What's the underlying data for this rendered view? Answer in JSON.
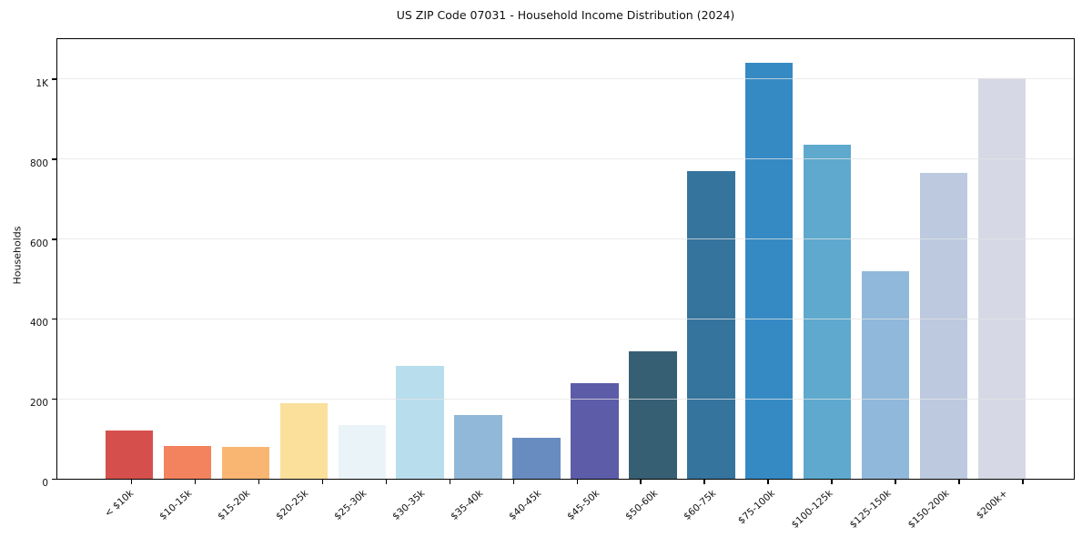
{
  "chart_data": {
    "type": "bar",
    "title": "US ZIP Code 07031 - Household Income Distribution (2024)",
    "xlabel": "",
    "ylabel": "Households",
    "ylim": [
      0,
      1100
    ],
    "grid": "horizontal",
    "legend": "none",
    "background_color": "#ffffff",
    "spine_color": "#000000",
    "grid_color": "#e4e4e6",
    "categories": [
      "< $10k",
      "$10-15k",
      "$15-20k",
      "$20-25k",
      "$25-30k",
      "$30-35k",
      "$35-40k",
      "$40-45k",
      "$45-50k",
      "$50-60k",
      "$60-75k",
      "$75-100k",
      "$100-125k",
      "$125-150k",
      "$150-200k",
      "$200k+"
    ],
    "values": [
      120,
      82,
      79,
      188,
      135,
      283,
      160,
      103,
      239,
      320,
      770,
      1040,
      835,
      520,
      766,
      1003
    ],
    "bar_colors": [
      "#d5504c",
      "#f3825f",
      "#f9b673",
      "#fae09b",
      "#eaf3f8",
      "#b8dded",
      "#91b8d8",
      "#688cc0",
      "#5c5ca8",
      "#365f73",
      "#35749d",
      "#358ac4",
      "#5ea9cd",
      "#90b8da",
      "#bcc9df",
      "#d6d8e5"
    ],
    "yticks": [
      {
        "value": 0,
        "label": "0"
      },
      {
        "value": 200,
        "label": "200"
      },
      {
        "value": 400,
        "label": "400"
      },
      {
        "value": 600,
        "label": "600"
      },
      {
        "value": 800,
        "label": "800"
      },
      {
        "value": 1000,
        "label": "1K"
      }
    ]
  }
}
